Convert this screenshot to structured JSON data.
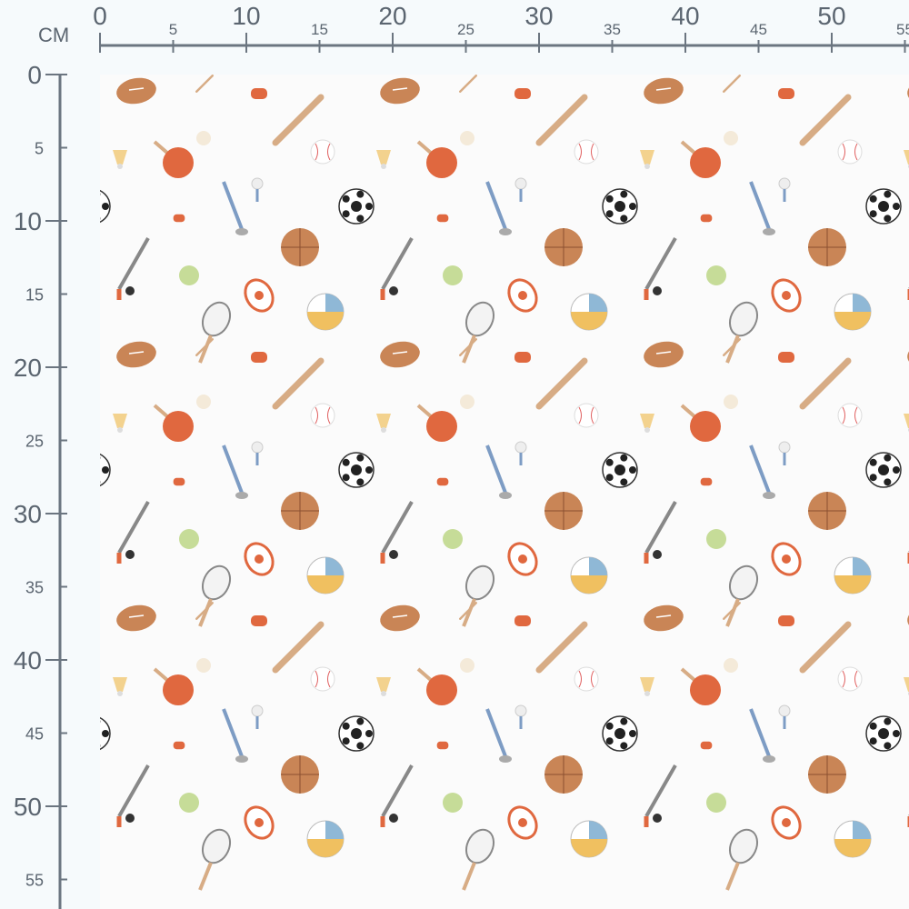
{
  "ruler": {
    "unit": "CM",
    "top_major": [
      "0",
      "10",
      "20",
      "30",
      "40",
      "50"
    ],
    "top_minor": [
      "5",
      "15",
      "25",
      "35",
      "45",
      "55"
    ],
    "left_major": [
      "0",
      "10",
      "20",
      "30",
      "40",
      "50"
    ],
    "left_minor": [
      "5",
      "15",
      "25",
      "35",
      "45",
      "55"
    ],
    "color": "#6b7580"
  },
  "fabric": {
    "background": "#fbfbfb",
    "motifs": [
      "american-football",
      "baseball-bat",
      "whistle",
      "ping-pong-paddle",
      "ping-pong-ball",
      "shuttlecock",
      "baseball",
      "golf-club",
      "golf-tee",
      "soccer-ball",
      "basketball",
      "hockey-stick",
      "tennis-ball",
      "rugby-ball",
      "volleyball",
      "tennis-racket"
    ],
    "colors": {
      "orange": "#e0683f",
      "tan": "#d7ac85",
      "brown": "#c98556",
      "blue": "#7d9cc4",
      "green": "#c6dc98",
      "yellow": "#f0c060"
    }
  }
}
